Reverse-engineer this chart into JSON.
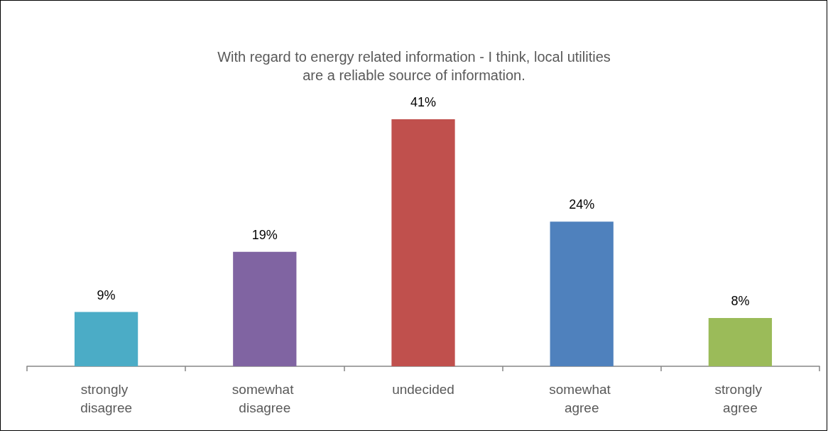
{
  "chart_data": {
    "type": "bar",
    "title": "With regard to energy related information - I think, local utilities are a reliable source of information.",
    "categories": [
      "strongly disagree",
      "somewhat disagree",
      "undecided",
      "somewhat agree",
      "strongly agree"
    ],
    "values": [
      9,
      19,
      41,
      24,
      8
    ],
    "value_labels": [
      "9%",
      "19%",
      "41%",
      "24%",
      "8%"
    ],
    "colors": [
      "#4bacc6",
      "#8064a2",
      "#c0504d",
      "#4f81bd",
      "#9bbb59"
    ]
  }
}
